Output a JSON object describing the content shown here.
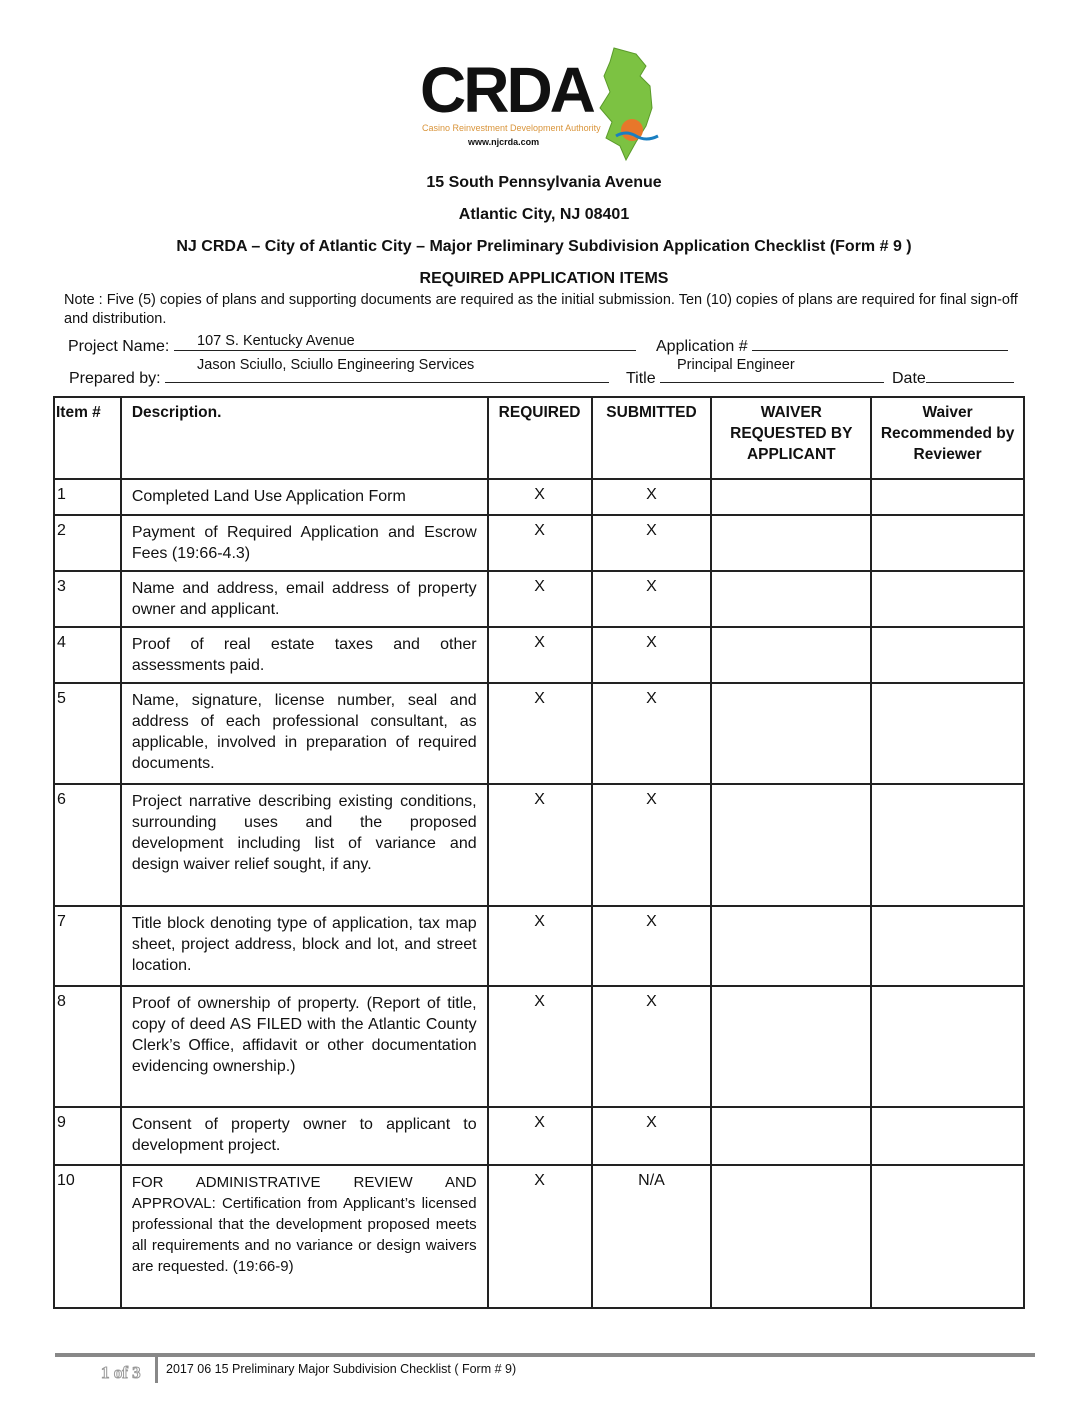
{
  "logo": {
    "text": "CRDA",
    "tagline": "Casino Reinvestment Development Authority",
    "url": "www.njcrda.com"
  },
  "header": {
    "address1": "15 South Pennsylvania Avenue",
    "address2": "Atlantic City, NJ 08401",
    "title": "NJ CRDA – City of Atlantic City – Major Preliminary Subdivision Application Checklist (Form # 9 )",
    "subtitle": "REQUIRED APPLICATION ITEMS"
  },
  "note": "Note : Five (5) copies of plans and supporting documents are required as the initial submission. Ten (10) copies of plans are required for final sign-off and distribution.",
  "form": {
    "project_name_label": "Project Name:",
    "project_name": "107 S. Kentucky Avenue",
    "application_label": "Application #",
    "prepared_by_label": "Prepared by:",
    "prepared_by": "Jason Sciullo, Sciullo Engineering Services",
    "title_label": "Title",
    "title": "Principal Engineer",
    "date_label": "Date"
  },
  "table": {
    "headers": [
      "Item #",
      "Description.",
      "REQUIRED",
      "SUBMITTED",
      "WAIVER REQUESTED BY APPLICANT",
      "Waiver Recommended by Reviewer"
    ],
    "rows": [
      {
        "item": "1",
        "desc": "Completed Land Use Application Form",
        "required": "X",
        "submitted": "X"
      },
      {
        "item": "2",
        "desc": "Payment of Required Application and Escrow Fees (19:66-4.3)",
        "required": "X",
        "submitted": "X"
      },
      {
        "item": "3",
        "desc": "Name and address, email address of property owner and applicant.",
        "required": "X",
        "submitted": "X"
      },
      {
        "item": "4",
        "desc": "Proof of real estate taxes and other assessments paid.",
        "required": "X",
        "submitted": "X"
      },
      {
        "item": "5",
        "desc": "Name, signature, license number, seal and address of each professional consultant, as applicable, involved in preparation of required documents.",
        "required": "X",
        "submitted": "X"
      },
      {
        "item": "6",
        "desc": "Project narrative describing existing conditions, surrounding uses and the proposed development including list of variance and design waiver relief sought, if any.",
        "required": "X",
        "submitted": "X"
      },
      {
        "item": "7",
        "desc": "Title block denoting type of application, tax map sheet, project address, block and lot, and street location.",
        "required": "X",
        "submitted": "X"
      },
      {
        "item": "8",
        "desc": "Proof of ownership of property. (Report of title, copy of deed AS FILED with the Atlantic County Clerk’s Office, affidavit or other documentation evidencing ownership.)",
        "required": "X",
        "submitted": "X"
      },
      {
        "item": "9",
        "desc": "Consent of property owner to applicant to development project.",
        "required": "X",
        "submitted": "X"
      },
      {
        "item": "10",
        "desc": "FOR ADMINISTRATIVE REVIEW AND APPROVAL: Certification from Applicant’s licensed professional that the development proposed meets all requirements and no variance or design waivers are requested. (19:66-9)",
        "required": "X",
        "submitted": "N/A"
      }
    ]
  },
  "footer": {
    "page": "1 of 3",
    "text": "2017 06 15 Preliminary Major Subdivision Checklist ( Form # 9)"
  }
}
